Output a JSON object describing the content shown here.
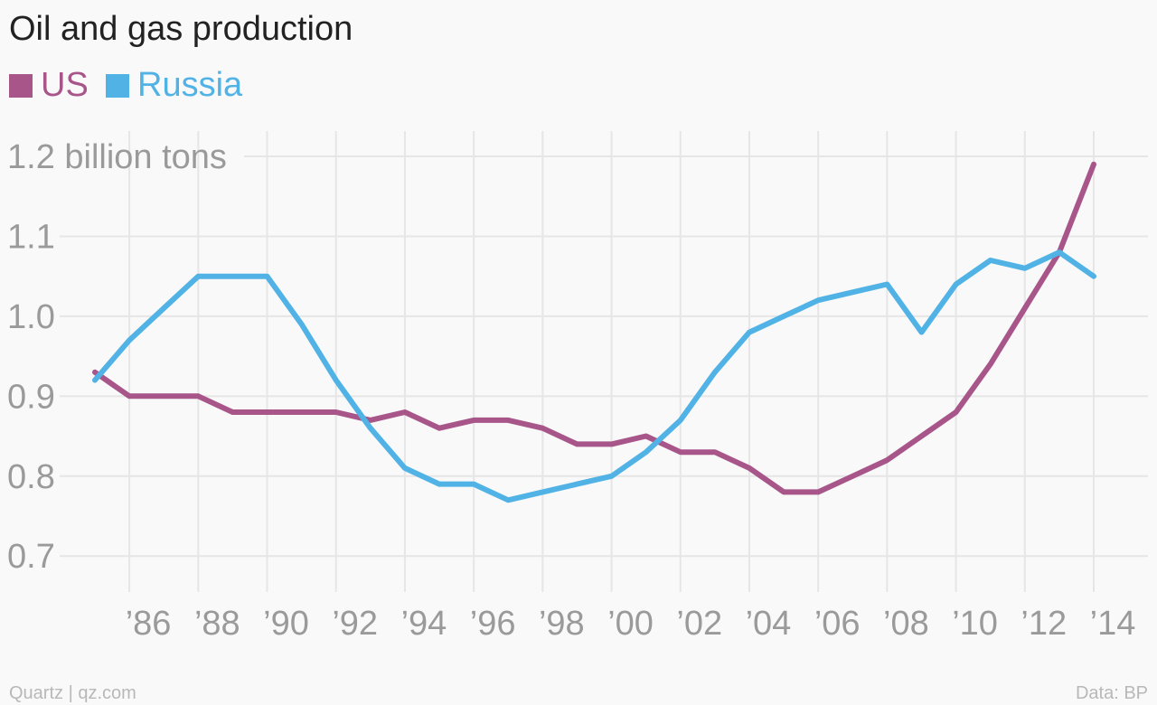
{
  "chart_data": {
    "type": "line",
    "title": "Oil and gas production",
    "unit_label": "1.2 billion tons",
    "x": [
      1985,
      1986,
      1987,
      1988,
      1989,
      1990,
      1991,
      1992,
      1993,
      1994,
      1995,
      1996,
      1997,
      1998,
      1999,
      2000,
      2001,
      2002,
      2003,
      2004,
      2005,
      2006,
      2007,
      2008,
      2009,
      2010,
      2011,
      2012,
      2013,
      2014
    ],
    "x_tick_values": [
      1986,
      1988,
      1990,
      1992,
      1994,
      1996,
      1998,
      2000,
      2002,
      2004,
      2006,
      2008,
      2010,
      2012,
      2014
    ],
    "x_tick_labels": [
      "’86",
      "’88",
      "’90",
      "’92",
      "’94",
      "’96",
      "’98",
      "’00",
      "’02",
      "’04",
      "’06",
      "’08",
      "’10",
      "’12",
      "’14"
    ],
    "y_tick_values": [
      0.7,
      0.8,
      0.9,
      1.0,
      1.1,
      1.2
    ],
    "y_tick_labels": [
      "0.7",
      "0.8",
      "0.9",
      "1.0",
      "1.1",
      "1.2 billion tons"
    ],
    "ylim": [
      0.655,
      1.2
    ],
    "xlim": [
      1984,
      2015
    ],
    "grid": true,
    "legend_position": "top-left",
    "series": [
      {
        "name": "US",
        "color": "#a8558a",
        "values": [
          0.93,
          0.9,
          0.9,
          0.9,
          0.88,
          0.88,
          0.88,
          0.88,
          0.87,
          0.88,
          0.86,
          0.87,
          0.87,
          0.86,
          0.84,
          0.84,
          0.85,
          0.83,
          0.83,
          0.81,
          0.78,
          0.78,
          0.8,
          0.82,
          0.85,
          0.88,
          0.94,
          1.01,
          1.08,
          1.19
        ]
      },
      {
        "name": "Russia",
        "color": "#51b2e5",
        "values": [
          0.92,
          0.97,
          1.01,
          1.05,
          1.05,
          1.05,
          0.99,
          0.92,
          0.86,
          0.81,
          0.79,
          0.79,
          0.77,
          0.78,
          0.79,
          0.8,
          0.83,
          0.87,
          0.93,
          0.98,
          1.0,
          1.02,
          1.03,
          1.04,
          0.98,
          1.04,
          1.07,
          1.06,
          1.08,
          1.05
        ]
      }
    ]
  },
  "footer": {
    "source_left": "Quartz | qz.com",
    "source_right": "Data: BP"
  }
}
